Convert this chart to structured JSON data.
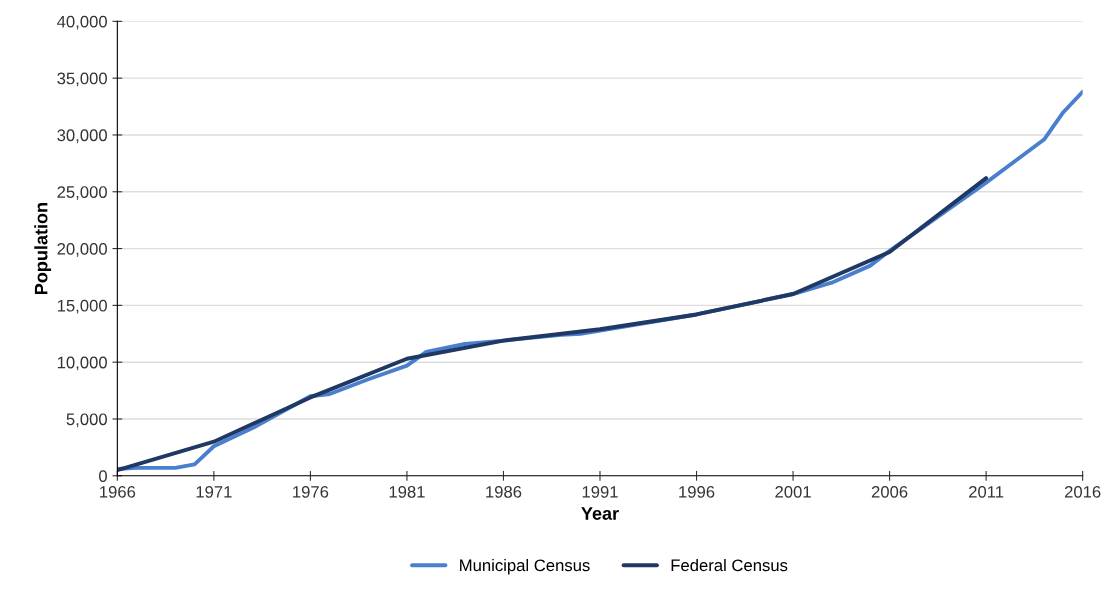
{
  "chart_data": {
    "type": "line",
    "xlabel": "Year",
    "ylabel": "Population",
    "xlim": [
      1966,
      2016
    ],
    "xticks": [
      1966,
      1971,
      1976,
      1981,
      1986,
      1991,
      1996,
      2001,
      2006,
      2011,
      2016
    ],
    "ylim": [
      0,
      40000
    ],
    "yticks": [
      {
        "value": 0,
        "label": "0"
      },
      {
        "value": 5000,
        "label": "5,000"
      },
      {
        "value": 10000,
        "label": "10,000"
      },
      {
        "value": 15000,
        "label": "15,000"
      },
      {
        "value": 20000,
        "label": "20,000"
      },
      {
        "value": 25000,
        "label": "25,000"
      },
      {
        "value": 30000,
        "label": "30,000"
      },
      {
        "value": 35000,
        "label": "35,000"
      },
      {
        "value": 40000,
        "label": "40,000"
      }
    ],
    "grid": "y",
    "legend": "bottom",
    "series": [
      {
        "name": "Municipal Census",
        "color": "#4a7fcf",
        "x": [
          1966,
          1967,
          1969,
          1970,
          1971,
          1973,
          1976,
          1977,
          1979,
          1981,
          1982,
          1984,
          1986,
          1989,
          1990,
          1996,
          2001,
          2003,
          2005,
          2006,
          2011,
          2014,
          2015,
          2016
        ],
        "values": [
          600,
          700,
          700,
          1000,
          2600,
          4200,
          7000,
          7200,
          8500,
          9700,
          10900,
          11600,
          11900,
          12400,
          12500,
          14200,
          16000,
          17000,
          18500,
          19800,
          25800,
          29600,
          32000,
          33800
        ]
      },
      {
        "name": "Federal Census",
        "color": "#1f3864",
        "x": [
          1966,
          1971,
          1976,
          1981,
          1986,
          1991,
          1996,
          2001,
          2006,
          2011
        ],
        "values": [
          500,
          3000,
          6900,
          10300,
          11900,
          12900,
          14200,
          16000,
          19700,
          26200
        ]
      }
    ]
  }
}
